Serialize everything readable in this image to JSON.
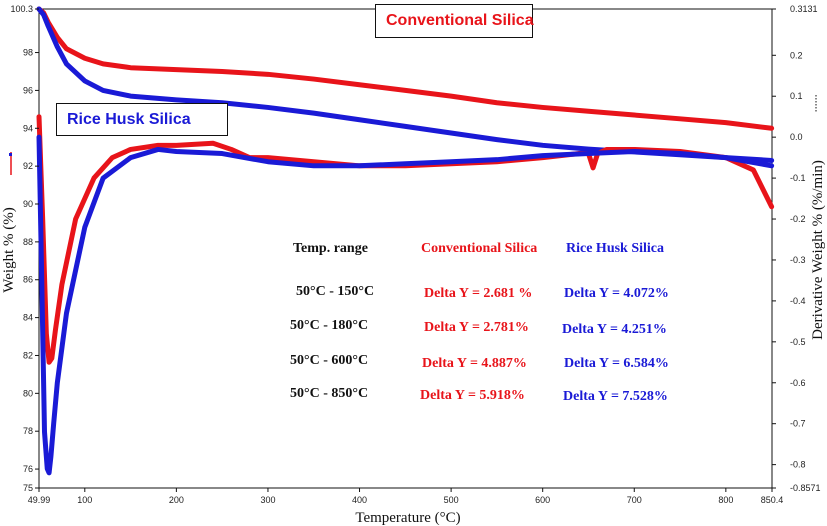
{
  "chart_data": {
    "type": "line",
    "x_axis": {
      "label": "Temperature (°C)",
      "range": [
        49.99,
        850.4
      ],
      "tick_labels": [
        "49.99",
        "100",
        "200",
        "300",
        "400",
        "500",
        "600",
        "700",
        "800",
        "850.4"
      ]
    },
    "y_axis_left": {
      "label": "Weight % (%)",
      "range": [
        75,
        100.3
      ],
      "tick_labels": [
        "100.3",
        "98",
        "96",
        "94",
        "92",
        "90",
        "88",
        "86",
        "84",
        "82",
        "80",
        "78",
        "76",
        "75"
      ]
    },
    "y_axis_right": {
      "label": "Derivative Weight % (%/min)",
      "range": [
        -0.8571,
        0.3131
      ],
      "tick_labels": [
        "0.3131",
        "0.2",
        "0.1",
        "0.0",
        "-0.1",
        "-0.2",
        "-0.3",
        "-0.4",
        "-0.5",
        "-0.6",
        "-0.7",
        "-0.8",
        "-0.8571"
      ]
    },
    "series": [
      {
        "name": "Conventional Silica",
        "kind": "weight",
        "axis": "left",
        "color": "#e8141a",
        "x": [
          50,
          55,
          60,
          70,
          80,
          100,
          120,
          150,
          200,
          250,
          300,
          350,
          400,
          450,
          500,
          550,
          600,
          650,
          700,
          750,
          800,
          850
        ],
        "y": [
          100.3,
          100.1,
          99.6,
          98.8,
          98.2,
          97.7,
          97.4,
          97.2,
          97.1,
          97.0,
          96.85,
          96.6,
          96.3,
          96.0,
          95.7,
          95.35,
          95.1,
          94.9,
          94.7,
          94.5,
          94.3,
          94.0
        ]
      },
      {
        "name": "Rice Husk Silica",
        "kind": "weight",
        "axis": "left",
        "color": "#1a1ad6",
        "x": [
          50,
          55,
          60,
          70,
          80,
          100,
          120,
          150,
          200,
          250,
          300,
          350,
          400,
          450,
          500,
          550,
          600,
          650,
          700,
          750,
          800,
          850
        ],
        "y": [
          100.3,
          100.0,
          99.4,
          98.3,
          97.4,
          96.5,
          96.0,
          95.7,
          95.5,
          95.35,
          95.1,
          94.8,
          94.45,
          94.1,
          93.75,
          93.4,
          93.1,
          92.9,
          92.75,
          92.6,
          92.45,
          92.3
        ]
      },
      {
        "name": "Conventional Silica",
        "kind": "derivative",
        "axis": "right",
        "color": "#e8141a",
        "x": [
          50,
          54,
          58,
          61,
          64,
          68,
          75,
          90,
          110,
          130,
          150,
          180,
          200,
          240,
          260,
          280,
          300,
          350,
          400,
          450,
          500,
          550,
          600,
          640,
          650,
          655,
          660,
          670,
          700,
          750,
          800,
          830,
          850
        ],
        "y": [
          0.05,
          -0.2,
          -0.48,
          -0.55,
          -0.54,
          -0.47,
          -0.36,
          -0.2,
          -0.1,
          -0.05,
          -0.03,
          -0.02,
          -0.02,
          -0.015,
          -0.03,
          -0.05,
          -0.05,
          -0.06,
          -0.07,
          -0.07,
          -0.065,
          -0.06,
          -0.05,
          -0.04,
          -0.04,
          -0.075,
          -0.04,
          -0.03,
          -0.03,
          -0.035,
          -0.05,
          -0.08,
          -0.17
        ]
      },
      {
        "name": "Rice Husk Silica",
        "kind": "derivative",
        "axis": "right",
        "color": "#1a1ad6",
        "x": [
          50,
          53,
          56,
          59,
          61,
          63,
          66,
          70,
          80,
          100,
          120,
          150,
          180,
          200,
          250,
          300,
          350,
          400,
          450,
          500,
          550,
          600,
          650,
          700,
          750,
          800,
          850
        ],
        "y": [
          0.0,
          -0.35,
          -0.72,
          -0.81,
          -0.82,
          -0.78,
          -0.7,
          -0.6,
          -0.43,
          -0.22,
          -0.1,
          -0.05,
          -0.03,
          -0.035,
          -0.04,
          -0.06,
          -0.07,
          -0.07,
          -0.065,
          -0.06,
          -0.055,
          -0.045,
          -0.04,
          -0.035,
          -0.04,
          -0.05,
          -0.07
        ]
      }
    ],
    "annotations": {
      "label_conventional": "Conventional Silica",
      "label_rice_husk": "Rice Husk Silica",
      "table": {
        "header_range": "Temp. range",
        "header_conventional": "Conventional Silica",
        "header_rice_husk": "Rice Husk Silica",
        "rows": [
          {
            "range": "50°C - 150°C",
            "conventional": "Delta Y = 2.681 %",
            "rice_husk": "Delta Y = 4.072%"
          },
          {
            "range": "50°C - 180°C",
            "conventional": "Delta Y = 2.781%",
            "rice_husk": "Delta Y = 4.251%"
          },
          {
            "range": "50°C - 600°C",
            "conventional": "Delta Y = 4.887%",
            "rice_husk": "Delta Y = 6.584%"
          },
          {
            "range": "50°C - 850°C",
            "conventional": "Delta Y = 5.918%",
            "rice_husk": "Delta Y = 7.528%"
          }
        ]
      }
    }
  }
}
